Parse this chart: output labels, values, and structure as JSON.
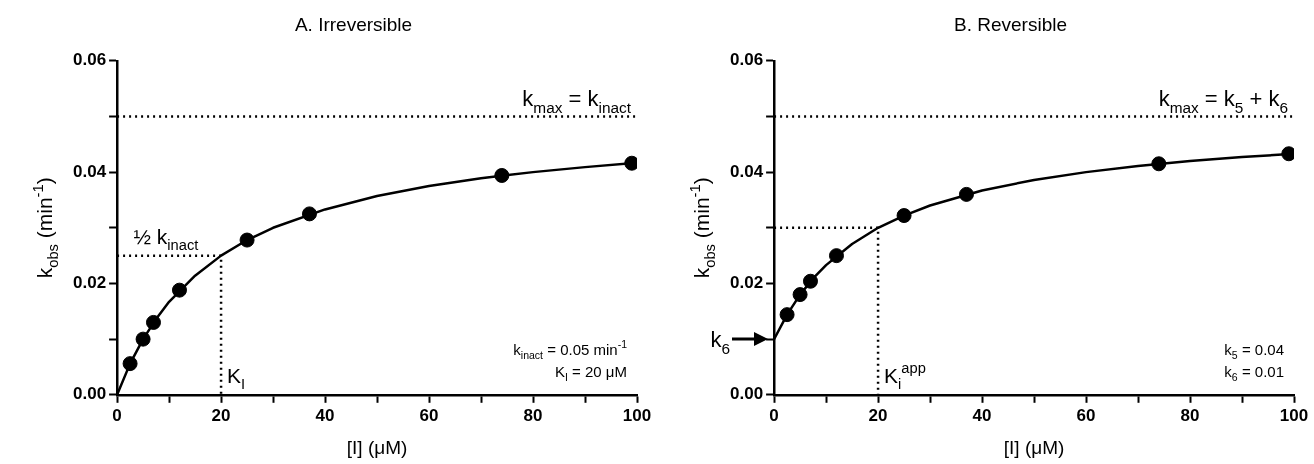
{
  "chart_data": [
    {
      "type": "line",
      "title": "A. Irreversible",
      "xlabel": "[I] (μM)",
      "ylabel": "k$_{obs}$ (min$^{-1}$)",
      "xlim": [
        0,
        100
      ],
      "xticks": [
        0,
        {
          "value": 10,
          "label": null
        },
        20,
        {
          "value": 30,
          "label": null
        },
        40,
        {
          "value": 50,
          "label": null
        },
        60,
        {
          "value": 70,
          "label": null
        },
        80,
        {
          "value": 90,
          "label": null
        },
        100
      ],
      "ylim": [
        0,
        0.06
      ],
      "yticks": [
        {
          "value": 0,
          "label": "0.00"
        },
        {
          "value": 0.01,
          "label": null
        },
        {
          "value": 0.02,
          "label": "0.02"
        },
        {
          "value": 0.03,
          "label": null
        },
        {
          "value": 0.04,
          "label": "0.04"
        },
        {
          "value": 0.05,
          "label": null
        },
        {
          "value": 0.06,
          "label": "0.06"
        }
      ],
      "grid": false,
      "legend": false,
      "series": [
        {
          "color": "#000000",
          "marker": "none",
          "line_style": "solid",
          "x": [
            0,
            2.5,
            5,
            7.5,
            10,
            15,
            20,
            25,
            30,
            40,
            50,
            60,
            70,
            80,
            90,
            100
          ],
          "values": [
            0,
            0.0056,
            0.01,
            0.0136,
            0.0167,
            0.0214,
            0.025,
            0.0278,
            0.03,
            0.0333,
            0.0357,
            0.0375,
            0.0389,
            0.04,
            0.0409,
            0.0417
          ]
        },
        {
          "type": "scatter",
          "color": "#000000",
          "marker": "circle",
          "x": [
            2.5,
            5,
            7,
            12,
            25,
            37,
            74,
            99
          ],
          "values": [
            0.0056,
            0.01,
            0.013,
            0.0188,
            0.0278,
            0.0325,
            0.0394,
            0.0416
          ]
        },
        {
          "color": "#000000",
          "marker": "none",
          "line_style": "dotted",
          "x": [
            0,
            20,
            20
          ],
          "values": [
            0.025,
            0.025,
            0
          ]
        }
      ],
      "ref_lines": [
        {
          "axis": "y",
          "value": 0.05,
          "label": "k$_{max}$ = k$_{inact}$",
          "line_style": "dotted"
        }
      ],
      "annotations": [
        {
          "text": "½ k$_{inact}$",
          "x": 2,
          "y": 0.025
        },
        {
          "text": "K$_{I}$",
          "x": 20,
          "y": 0
        },
        "k$_{inact}$ = 0.05 min$^{-1}$",
        "K$_{I}$ = 20 μM"
      ]
    },
    {
      "type": "line",
      "title": "B. Reversible",
      "xlabel": "[I] (μM)",
      "ylabel": "k$_{obs}$ (min$^{-1}$)",
      "xlim": [
        0,
        100
      ],
      "xticks": [
        0,
        {
          "value": 10,
          "label": null
        },
        20,
        {
          "value": 30,
          "label": null
        },
        40,
        {
          "value": 50,
          "label": null
        },
        60,
        {
          "value": 70,
          "label": null
        },
        80,
        {
          "value": 90,
          "label": null
        },
        100
      ],
      "ylim": [
        0,
        0.06
      ],
      "yticks": [
        {
          "value": 0,
          "label": "0.00"
        },
        {
          "value": 0.01,
          "label": null
        },
        {
          "value": 0.02,
          "label": "0.02"
        },
        {
          "value": 0.03,
          "label": null
        },
        {
          "value": 0.04,
          "label": "0.04"
        },
        {
          "value": 0.05,
          "label": null
        },
        {
          "value": 0.06,
          "label": "0.06"
        }
      ],
      "grid": false,
      "legend": false,
      "series": [
        {
          "color": "#000000",
          "marker": "none",
          "line_style": "solid",
          "x": [
            0,
            2.5,
            5,
            7.5,
            10,
            15,
            20,
            25,
            30,
            40,
            50,
            60,
            70,
            80,
            90,
            100
          ],
          "values": [
            0.01,
            0.0144,
            0.018,
            0.0209,
            0.0233,
            0.0271,
            0.03,
            0.0322,
            0.034,
            0.0367,
            0.0386,
            0.04,
            0.0411,
            0.042,
            0.0427,
            0.0433
          ]
        },
        {
          "type": "scatter",
          "color": "#000000",
          "marker": "circle",
          "x": [
            2.5,
            5,
            7,
            12,
            25,
            37,
            74,
            99
          ],
          "values": [
            0.0144,
            0.018,
            0.0204,
            0.025,
            0.0322,
            0.036,
            0.0415,
            0.0433
          ]
        },
        {
          "color": "#000000",
          "marker": "none",
          "line_style": "dotted",
          "x": [
            0,
            20,
            20
          ],
          "values": [
            0.03,
            0.03,
            0
          ]
        }
      ],
      "ref_lines": [
        {
          "axis": "y",
          "value": 0.05,
          "label": "k$_{max}$ = k$_{5}$ + k$_{6}$",
          "line_style": "dotted"
        }
      ],
      "annotations": [
        {
          "text": "K$_{i}$$^{app}$",
          "x": 20,
          "y": 0
        },
        {
          "text": "k$_{6}$",
          "x": 0,
          "y": 0.01
        },
        "k$_{5}$ = 0.04",
        "k$_{6}$ = 0.01"
      ]
    }
  ]
}
